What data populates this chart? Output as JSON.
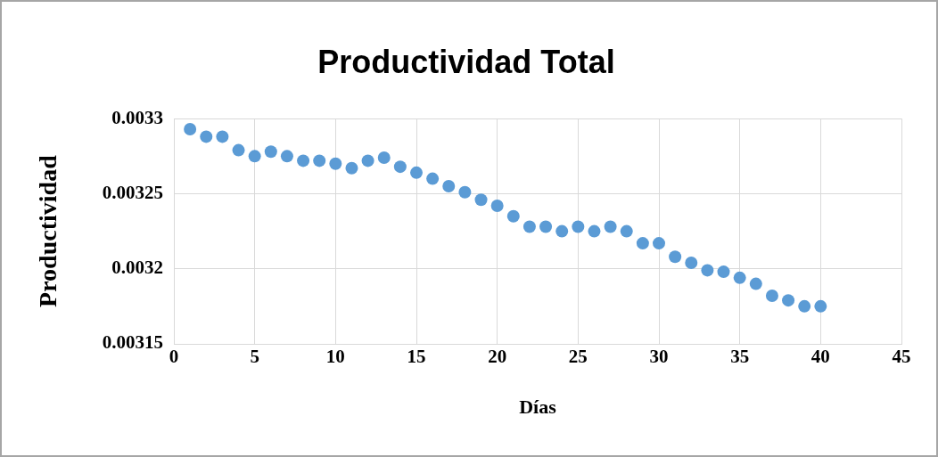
{
  "chart_data": {
    "type": "scatter",
    "title": "Productividad Total",
    "xlabel": "Días",
    "ylabel": "Productividad",
    "x": [
      1,
      2,
      3,
      4,
      5,
      6,
      7,
      8,
      9,
      10,
      11,
      12,
      13,
      14,
      15,
      16,
      17,
      18,
      19,
      20,
      21,
      22,
      23,
      24,
      25,
      26,
      27,
      28,
      29,
      30,
      31,
      32,
      33,
      34,
      35,
      36,
      37,
      38,
      39,
      40
    ],
    "series": [
      {
        "color": "#5b9bd5",
        "values": [
          0.003293,
          0.003288,
          0.003288,
          0.003279,
          0.003275,
          0.003278,
          0.003275,
          0.003272,
          0.003272,
          0.00327,
          0.003267,
          0.003272,
          0.003274,
          0.003268,
          0.003264,
          0.00326,
          0.003255,
          0.003251,
          0.003246,
          0.003242,
          0.003235,
          0.003228,
          0.003228,
          0.003225,
          0.003228,
          0.003225,
          0.003228,
          0.003225,
          0.003217,
          0.003217,
          0.003208,
          0.003204,
          0.003199,
          0.003198,
          0.003194,
          0.00319,
          0.003182,
          0.003179,
          0.003175,
          0.003175
        ]
      }
    ],
    "xlim": [
      0,
      45
    ],
    "xticks": [
      0,
      5,
      10,
      15,
      20,
      25,
      30,
      35,
      40,
      45
    ],
    "ylim": [
      0.00315,
      0.0033
    ],
    "yticks": [
      0.00315,
      0.0032,
      0.00325,
      0.0033
    ],
    "grid": true,
    "legend": false,
    "marker": "circle"
  }
}
